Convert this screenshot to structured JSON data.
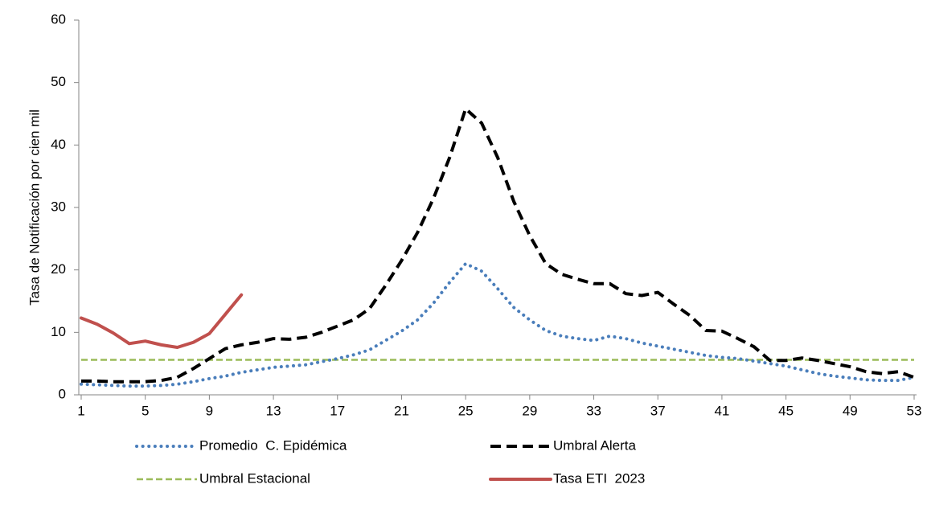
{
  "chart_data": {
    "type": "line",
    "y_label": "Tasa de Notificación por cien mil",
    "x": [
      1,
      2,
      3,
      4,
      5,
      6,
      7,
      8,
      9,
      10,
      11,
      12,
      13,
      14,
      15,
      16,
      17,
      18,
      19,
      20,
      21,
      22,
      23,
      24,
      25,
      26,
      27,
      28,
      29,
      30,
      31,
      32,
      33,
      34,
      35,
      36,
      37,
      38,
      39,
      40,
      41,
      42,
      43,
      44,
      45,
      46,
      47,
      48,
      49,
      50,
      51,
      52,
      53
    ],
    "xlim": [
      1,
      53
    ],
    "xticks": [
      1,
      5,
      9,
      13,
      17,
      21,
      25,
      29,
      33,
      37,
      41,
      45,
      49,
      53
    ],
    "ylim": [
      0,
      60
    ],
    "yticks": [
      0,
      10,
      20,
      30,
      40,
      50,
      60
    ],
    "grid": false,
    "series": [
      {
        "name": "Promedio  C. Epidémica",
        "color": "#4a7ebb",
        "style": "dotted",
        "values": [
          1.7,
          1.6,
          1.5,
          1.4,
          1.4,
          1.5,
          1.7,
          2.1,
          2.6,
          3.0,
          3.6,
          4.0,
          4.4,
          4.6,
          4.8,
          5.3,
          5.8,
          6.4,
          7.2,
          8.7,
          10.2,
          12.0,
          14.7,
          18.0,
          21.0,
          19.8,
          17.0,
          14.0,
          12.0,
          10.3,
          9.4,
          9.0,
          8.7,
          9.4,
          9.0,
          8.3,
          7.8,
          7.3,
          6.8,
          6.3,
          6.0,
          5.8,
          5.4,
          5.0,
          4.6,
          4.0,
          3.4,
          3.0,
          2.7,
          2.4,
          2.3,
          2.3,
          2.8
        ]
      },
      {
        "name": "Umbral Alerta",
        "color": "#000000",
        "style": "dashed",
        "values": [
          2.2,
          2.2,
          2.1,
          2.1,
          2.1,
          2.3,
          2.8,
          4.2,
          5.8,
          7.4,
          8.0,
          8.4,
          9.0,
          8.9,
          9.2,
          10.0,
          11.0,
          12.0,
          13.8,
          17.5,
          21.5,
          26.0,
          31.5,
          38.0,
          45.8,
          43.5,
          38.0,
          31.0,
          25.5,
          21.0,
          19.3,
          18.5,
          17.8,
          17.8,
          16.2,
          15.9,
          16.4,
          14.5,
          12.7,
          10.3,
          10.2,
          9.0,
          7.7,
          5.5,
          5.5,
          5.9,
          5.5,
          5.0,
          4.5,
          3.7,
          3.4,
          3.7,
          2.8
        ]
      },
      {
        "name": "Umbral Estacional",
        "color": "#9bbb59",
        "style": "thin-dashed",
        "values": [
          5.6,
          5.6,
          5.6,
          5.6,
          5.6,
          5.6,
          5.6,
          5.6,
          5.6,
          5.6,
          5.6,
          5.6,
          5.6,
          5.6,
          5.6,
          5.6,
          5.6,
          5.6,
          5.6,
          5.6,
          5.6,
          5.6,
          5.6,
          5.6,
          5.6,
          5.6,
          5.6,
          5.6,
          5.6,
          5.6,
          5.6,
          5.6,
          5.6,
          5.6,
          5.6,
          5.6,
          5.6,
          5.6,
          5.6,
          5.6,
          5.6,
          5.6,
          5.6,
          5.6,
          5.6,
          5.6,
          5.6,
          5.6,
          5.6,
          5.6,
          5.6,
          5.6,
          5.6
        ]
      },
      {
        "name": "Tasa ETI  2023",
        "color": "#c0504d",
        "style": "solid",
        "values": [
          12.3,
          11.3,
          9.9,
          8.2,
          8.6,
          8.0,
          7.6,
          8.4,
          9.8,
          12.9,
          16.0,
          null,
          null,
          null,
          null,
          null,
          null,
          null,
          null,
          null,
          null,
          null,
          null,
          null,
          null,
          null,
          null,
          null,
          null,
          null,
          null,
          null,
          null,
          null,
          null,
          null,
          null,
          null,
          null,
          null,
          null,
          null,
          null,
          null,
          null,
          null,
          null,
          null,
          null,
          null,
          null,
          null,
          null
        ]
      }
    ]
  }
}
